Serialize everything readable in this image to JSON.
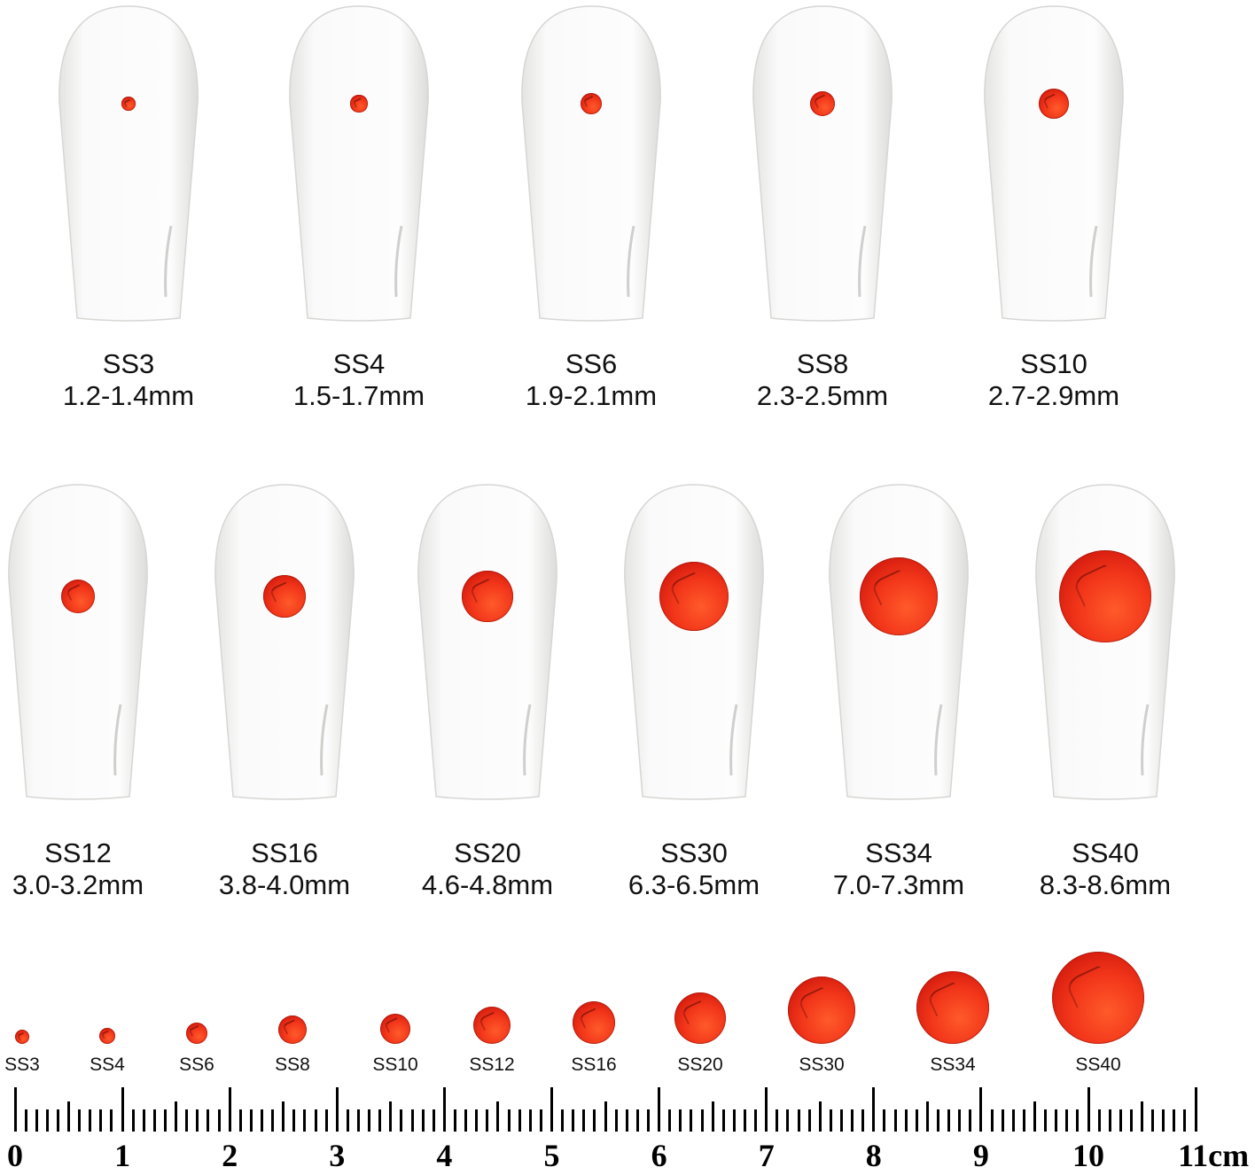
{
  "row1": [
    {
      "name": "SS3",
      "range": "1.2-1.4mm",
      "mm": 1.3
    },
    {
      "name": "SS4",
      "range": "1.5-1.7mm",
      "mm": 1.6
    },
    {
      "name": "SS6",
      "range": "1.9-2.1mm",
      "mm": 2.0
    },
    {
      "name": "SS8",
      "range": "2.3-2.5mm",
      "mm": 2.4
    },
    {
      "name": "SS10",
      "range": "2.7-2.9mm",
      "mm": 2.8
    }
  ],
  "row2": [
    {
      "name": "SS12",
      "range": "3.0-3.2mm",
      "mm": 3.1
    },
    {
      "name": "SS16",
      "range": "3.8-4.0mm",
      "mm": 3.9
    },
    {
      "name": "SS20",
      "range": "4.6-4.8mm",
      "mm": 4.7
    },
    {
      "name": "SS30",
      "range": "6.3-6.5mm",
      "mm": 6.4
    },
    {
      "name": "SS34",
      "range": "7.0-7.3mm",
      "mm": 7.15
    },
    {
      "name": "SS40",
      "range": "8.3-8.6mm",
      "mm": 8.45
    }
  ],
  "lineup": [
    "SS3",
    "SS4",
    "SS6",
    "SS8",
    "SS10",
    "SS12",
    "SS16",
    "SS20",
    "SS30",
    "SS34",
    "SS40"
  ],
  "ruler": {
    "labels": [
      "0",
      "1",
      "2",
      "3",
      "4",
      "5",
      "6",
      "7",
      "8",
      "9",
      "10",
      "11cm"
    ]
  },
  "colors": {
    "gem": "#e8301a",
    "nail": "#ffffff"
  }
}
